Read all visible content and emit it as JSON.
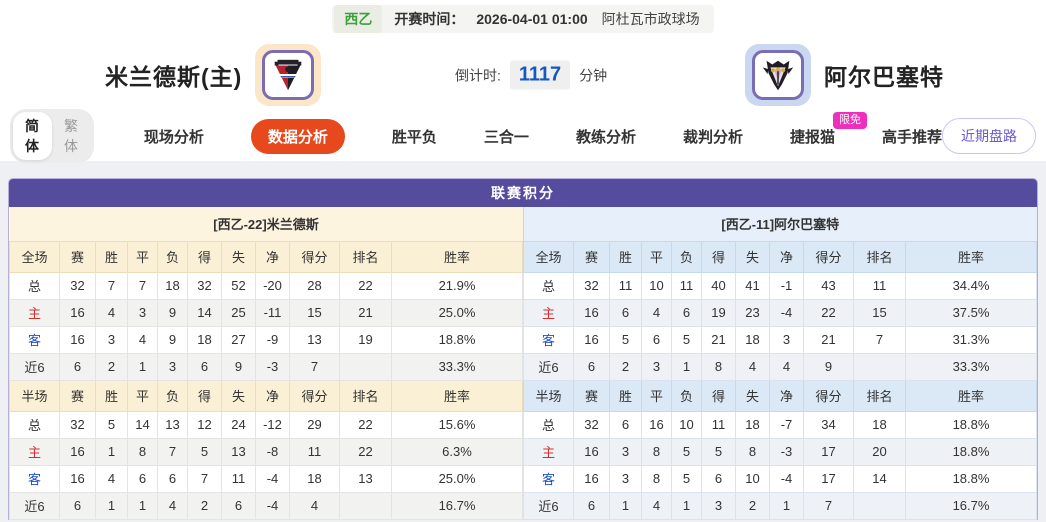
{
  "top_bar": {
    "league": "西乙",
    "kickoff_label": "开赛时间：",
    "kickoff_time": "2026-04-01 01:00",
    "venue": "阿杜瓦市政球场"
  },
  "match_header": {
    "home_name": "米兰德斯(主)",
    "away_name": "阿尔巴塞特",
    "countdown_label": "倒计时:",
    "countdown_value": "1117",
    "countdown_unit": "分钟"
  },
  "nav": {
    "lang_simplified": "简体",
    "lang_traditional": "繁体",
    "items": [
      {
        "label": "现场分析",
        "active": false
      },
      {
        "label": "数据分析",
        "active": true
      },
      {
        "label": "胜平负",
        "active": false
      },
      {
        "label": "三合一",
        "active": false
      },
      {
        "label": "教练分析",
        "active": false
      },
      {
        "label": "裁判分析",
        "active": false
      },
      {
        "label": "捷报猫",
        "active": false,
        "badge": "限免"
      },
      {
        "label": "高手推荐",
        "active": false
      }
    ],
    "right_button": "近期盘路"
  },
  "league_table": {
    "title": "联赛积分",
    "home": {
      "team_title": "[西乙-22]米兰德斯",
      "full": {
        "headers": [
          "全场",
          "赛",
          "胜",
          "平",
          "负",
          "得",
          "失",
          "净",
          "得分",
          "排名",
          "胜率"
        ],
        "rows": [
          {
            "label": "总",
            "cells": [
              "32",
              "7",
              "7",
              "18",
              "32",
              "52",
              "-20",
              "28",
              "22",
              "21.9%"
            ]
          },
          {
            "label": "主",
            "label_color": "#d43030",
            "cells": [
              "16",
              "4",
              "3",
              "9",
              "14",
              "25",
              "-11",
              "15",
              "21",
              "25.0%"
            ]
          },
          {
            "label": "客",
            "label_color": "#2050d0",
            "cells": [
              "16",
              "3",
              "4",
              "9",
              "18",
              "27",
              "-9",
              "13",
              "19",
              "18.8%"
            ]
          },
          {
            "label": "近6",
            "cells": [
              "6",
              "2",
              "1",
              "3",
              "6",
              "9",
              "-3",
              "7",
              "",
              "33.3%"
            ]
          }
        ]
      },
      "half": {
        "headers": [
          "半场",
          "赛",
          "胜",
          "平",
          "负",
          "得",
          "失",
          "净",
          "得分",
          "排名",
          "胜率"
        ],
        "rows": [
          {
            "label": "总",
            "cells": [
              "32",
              "5",
              "14",
              "13",
              "12",
              "24",
              "-12",
              "29",
              "22",
              "15.6%"
            ]
          },
          {
            "label": "主",
            "label_color": "#d43030",
            "cells": [
              "16",
              "1",
              "8",
              "7",
              "5",
              "13",
              "-8",
              "11",
              "22",
              "6.3%"
            ]
          },
          {
            "label": "客",
            "label_color": "#2050d0",
            "cells": [
              "16",
              "4",
              "6",
              "6",
              "7",
              "11",
              "-4",
              "18",
              "13",
              "25.0%"
            ]
          },
          {
            "label": "近6",
            "cells": [
              "6",
              "1",
              "1",
              "4",
              "2",
              "6",
              "-4",
              "4",
              "",
              "16.7%"
            ]
          }
        ]
      }
    },
    "away": {
      "team_title": "[西乙-11]阿尔巴塞特",
      "full": {
        "headers": [
          "全场",
          "赛",
          "胜",
          "平",
          "负",
          "得",
          "失",
          "净",
          "得分",
          "排名",
          "胜率"
        ],
        "rows": [
          {
            "label": "总",
            "cells": [
              "32",
              "11",
              "10",
              "11",
              "40",
              "41",
              "-1",
              "43",
              "11",
              "34.4%"
            ]
          },
          {
            "label": "主",
            "label_color": "#d43030",
            "cells": [
              "16",
              "6",
              "4",
              "6",
              "19",
              "23",
              "-4",
              "22",
              "15",
              "37.5%"
            ]
          },
          {
            "label": "客",
            "label_color": "#2050d0",
            "cells": [
              "16",
              "5",
              "6",
              "5",
              "21",
              "18",
              "3",
              "21",
              "7",
              "31.3%"
            ]
          },
          {
            "label": "近6",
            "cells": [
              "6",
              "2",
              "3",
              "1",
              "8",
              "4",
              "4",
              "9",
              "",
              "33.3%"
            ]
          }
        ]
      },
      "half": {
        "headers": [
          "半场",
          "赛",
          "胜",
          "平",
          "负",
          "得",
          "失",
          "净",
          "得分",
          "排名",
          "胜率"
        ],
        "rows": [
          {
            "label": "总",
            "cells": [
              "32",
              "6",
              "16",
              "10",
              "11",
              "18",
              "-7",
              "34",
              "18",
              "18.8%"
            ]
          },
          {
            "label": "主",
            "label_color": "#d43030",
            "cells": [
              "16",
              "3",
              "8",
              "5",
              "5",
              "8",
              "-3",
              "17",
              "20",
              "18.8%"
            ]
          },
          {
            "label": "客",
            "label_color": "#2050d0",
            "cells": [
              "16",
              "3",
              "8",
              "5",
              "6",
              "10",
              "-4",
              "17",
              "14",
              "18.8%"
            ]
          },
          {
            "label": "近6",
            "cells": [
              "6",
              "1",
              "4",
              "1",
              "3",
              "2",
              "1",
              "7",
              "",
              "16.7%"
            ]
          }
        ]
      }
    }
  },
  "colors": {
    "accent_purple": "#564c9e",
    "active_tab_orange": "#e8491c",
    "badge_pink": "#ee2fbe",
    "countdown_blue": "#1558be",
    "league_green": "#3da03d",
    "home_row_red": "#d43030",
    "away_row_blue": "#2050d0",
    "home_tile_bg": "#fbe7c7",
    "away_tile_bg": "#c9d7f1"
  },
  "icons": {
    "home_logo": "mirandes-crest-icon",
    "away_logo": "albacete-crest-icon"
  }
}
